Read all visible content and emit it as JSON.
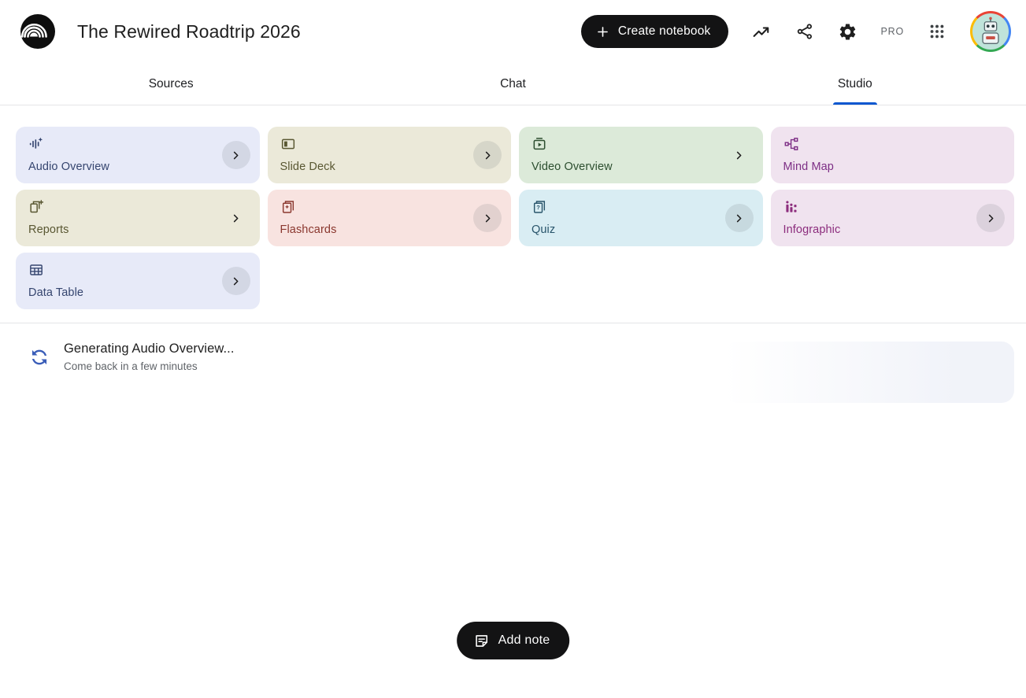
{
  "header": {
    "logo_icon": "notebooklm-logo",
    "title": "The Rewired Roadtrip 2026",
    "create_button": {
      "icon": "plus-icon",
      "label": "Create notebook"
    },
    "pro_badge": "PRO",
    "action_icons": [
      "trending-up-icon",
      "share-icon",
      "settings-gear-icon",
      "apps-grid-icon",
      "avatar-robot"
    ]
  },
  "tabs": {
    "items": [
      {
        "label": "Sources",
        "active": false
      },
      {
        "label": "Chat",
        "active": false
      },
      {
        "label": "Studio",
        "active": true
      }
    ]
  },
  "studio": {
    "cards": [
      {
        "label": "Audio Overview",
        "icon": "audio-waveform-sparkle-icon",
        "bg": "#e7eaf8",
        "fg": "#35456f",
        "chevron": "circle"
      },
      {
        "label": "Slide Deck",
        "icon": "slide-deck-icon",
        "bg": "#ebe9d9",
        "fg": "#595732",
        "chevron": "circle"
      },
      {
        "label": "Video Overview",
        "icon": "video-overview-icon",
        "bg": "#dcead9",
        "fg": "#2c4e2f",
        "chevron": "plain"
      },
      {
        "label": "Mind Map",
        "icon": "mind-map-icon",
        "bg": "#f0e3ef",
        "fg": "#7d2e85",
        "chevron": "none"
      },
      {
        "label": "Reports",
        "icon": "reports-icon",
        "bg": "#ebe9d9",
        "fg": "#595732",
        "chevron": "plain"
      },
      {
        "label": "Flashcards",
        "icon": "flashcards-icon",
        "bg": "#f8e3e0",
        "fg": "#8a372e",
        "chevron": "circle"
      },
      {
        "label": "Quiz",
        "icon": "quiz-icon",
        "bg": "#d9edf3",
        "fg": "#29556b",
        "chevron": "circle"
      },
      {
        "label": "Infographic",
        "icon": "infographic-icon",
        "bg": "#f0e3ef",
        "fg": "#8c2d7d",
        "chevron": "circle"
      },
      {
        "label": "Data Table",
        "icon": "data-table-icon",
        "bg": "#e7eaf8",
        "fg": "#35456f",
        "chevron": "circle"
      }
    ],
    "generating": {
      "icon": "sync-spinner-icon",
      "title": "Generating Audio Overview...",
      "subtitle": "Come back in a few minutes"
    },
    "add_note": {
      "icon": "note-icon",
      "label": "Add note"
    }
  },
  "colors": {
    "accent_blue": "#0b57d0",
    "pill_black": "#131314",
    "spinner_blue": "#3a5db8",
    "divider": "#e4e5e7",
    "chevron_circle": "rgba(95,99,104,0.14)",
    "skeleton_end": "#f1f3f9"
  }
}
